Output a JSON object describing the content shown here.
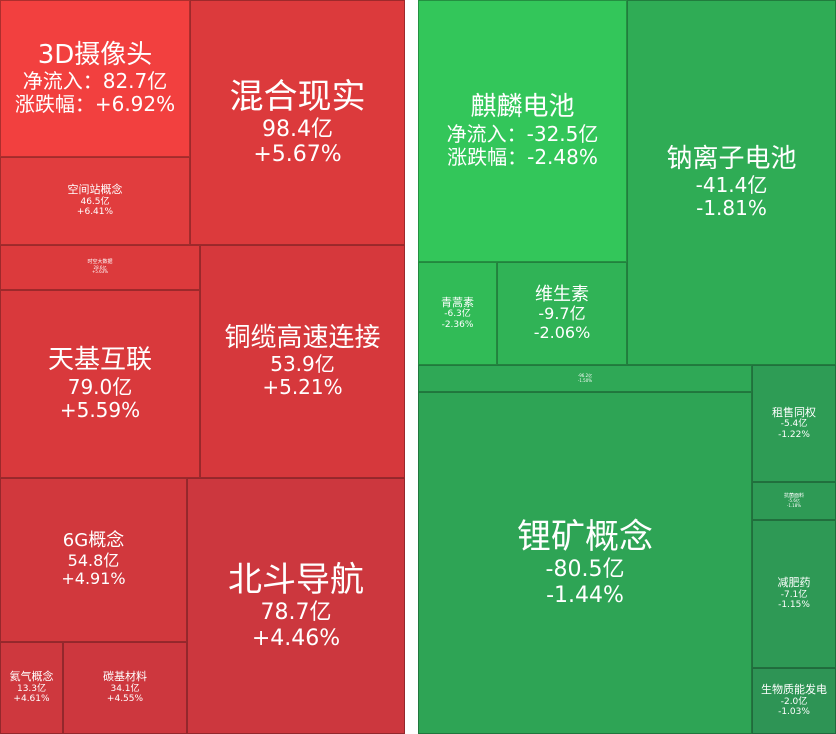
{
  "chart_data": {
    "type": "treemap",
    "items": [
      {
        "id": "t1",
        "name": "3D摄像头",
        "inflow": "净流入：82.7亿",
        "change": "涨跌幅：+6.92%",
        "color": "#f2403f"
      },
      {
        "id": "t2",
        "name": "混合现实",
        "inflow": "98.4亿",
        "change": "+5.67%",
        "color": "#dc3a3c"
      },
      {
        "id": "t3",
        "name": "空间站概念",
        "inflow": "46.5亿",
        "change": "+6.41%",
        "color": "#e13d3e"
      },
      {
        "id": "t4",
        "name": "时空大数据",
        "inflow": "28.6亿",
        "change": "+5.63%",
        "color": "#dc3a3c"
      },
      {
        "id": "t5",
        "name": "天基互联",
        "inflow": "79.0亿",
        "change": "+5.59%",
        "color": "#d9393c"
      },
      {
        "id": "t6",
        "name": "铜缆高速连接",
        "inflow": "53.9亿",
        "change": "+5.21%",
        "color": "#d6383c"
      },
      {
        "id": "t7",
        "name": "6G概念",
        "inflow": "54.8亿",
        "change": "+4.91%",
        "color": "#d1383d"
      },
      {
        "id": "t8",
        "name": "氦气概念",
        "inflow": "13.3亿",
        "change": "+4.61%",
        "color": "#ce383e"
      },
      {
        "id": "t9",
        "name": "碳基材料",
        "inflow": "34.1亿",
        "change": "+4.55%",
        "color": "#cd373e"
      },
      {
        "id": "t10",
        "name": "北斗导航",
        "inflow": "78.7亿",
        "change": "+4.46%",
        "color": "#cc373e"
      },
      {
        "id": "t11",
        "name": "麒麟电池",
        "inflow": "净流入：-32.5亿",
        "change": "涨跌幅：-2.48%",
        "color": "#33c65a"
      },
      {
        "id": "t12",
        "name": "钠离子电池",
        "inflow": "-41.4亿",
        "change": "-1.81%",
        "color": "#2fac55"
      },
      {
        "id": "t13",
        "name": "青蒿素",
        "inflow": "-6.3亿",
        "change": "-2.36%",
        "color": "#31bb57"
      },
      {
        "id": "t14",
        "name": "维生素",
        "inflow": "-9.7亿",
        "change": "-2.06%",
        "color": "#30b356"
      },
      {
        "id": "t15",
        "name": "",
        "inflow": "-96.2亿",
        "change": "-1.50%",
        "color": "#2fa856"
      },
      {
        "id": "t16",
        "name": "锂矿概念",
        "inflow": "-80.5亿",
        "change": "-1.44%",
        "color": "#2ea455"
      },
      {
        "id": "t17",
        "name": "租售同权",
        "inflow": "-5.4亿",
        "change": "-1.22%",
        "color": "#2e9c55"
      },
      {
        "id": "t18",
        "name": "抗菌面料",
        "inflow": "-5.6亿",
        "change": "-1.18%",
        "color": "#2e9a55"
      },
      {
        "id": "t19",
        "name": "减肥药",
        "inflow": "-7.1亿",
        "change": "-1.15%",
        "color": "#2e9955"
      },
      {
        "id": "t20",
        "name": "生物质能发电",
        "inflow": "-2.0亿",
        "change": "-1.03%",
        "color": "#2e9455"
      }
    ]
  }
}
